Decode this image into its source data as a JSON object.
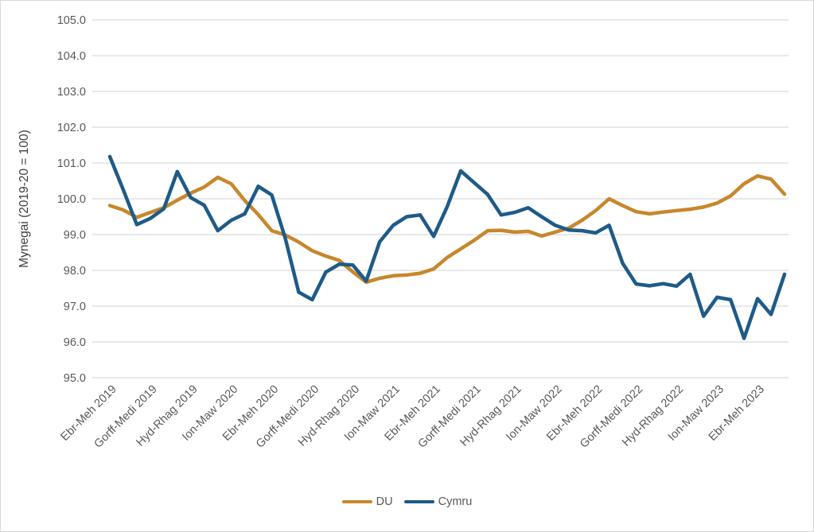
{
  "chart_data": {
    "type": "line",
    "title": "",
    "ylabel": "Mynegai (2019-20 = 100)",
    "xlabel": "",
    "ylim": [
      95.0,
      105.0
    ],
    "ytick_step": 1.0,
    "y_tick_labels": [
      "95.0",
      "96.0",
      "97.0",
      "98.0",
      "99.0",
      "100.0",
      "101.0",
      "102.0",
      "103.0",
      "104.0",
      "105.0"
    ],
    "grid": "horizontal",
    "gridline_color": "#d9d9d9",
    "x_tick_labels": [
      "Ebr-Meh 2019",
      "Gorff-Medi 2019",
      "Hyd-Rhag 2019",
      "Ion-Maw 2020",
      "Ebr-Meh 2020",
      "Gorff-Medi 2020",
      "Hyd-Rhag 2020",
      "Ion-Maw 2021",
      "Ebr-Meh 2021",
      "Gorff-Medi 2021",
      "Hyd-Rhag 2021",
      "Ion-Maw 2022",
      "Ebr-Meh 2022",
      "Gorff-Medi 2022",
      "Hyd-Rhag 2022",
      "Ion-Maw 2023",
      "Ebr-Meh 2023"
    ],
    "x_tick_every_n_points": 3,
    "x_tick_rotation_deg": -45,
    "legend_position": "bottom-center",
    "series": [
      {
        "name": "DU",
        "color": "#c8872c",
        "line_width": 4.5,
        "values": [
          99.81,
          99.69,
          99.48,
          99.62,
          99.75,
          99.96,
          100.16,
          100.33,
          100.6,
          100.42,
          99.95,
          99.56,
          99.11,
          98.99,
          98.79,
          98.55,
          98.4,
          98.28,
          97.96,
          97.67,
          97.78,
          97.85,
          97.87,
          97.92,
          98.04,
          98.36,
          98.6,
          98.84,
          99.11,
          99.12,
          99.07,
          99.09,
          98.96,
          99.07,
          99.18,
          99.4,
          99.67,
          100.0,
          99.81,
          99.64,
          99.58,
          99.63,
          99.67,
          99.71,
          99.77,
          99.88,
          100.08,
          100.42,
          100.64,
          100.55,
          100.13
        ]
      },
      {
        "name": "Cymru",
        "color": "#1e5b87",
        "line_width": 4.5,
        "values": [
          101.18,
          100.25,
          99.28,
          99.45,
          99.72,
          100.76,
          100.03,
          99.82,
          99.11,
          99.4,
          99.58,
          100.35,
          100.11,
          98.9,
          97.39,
          97.18,
          97.95,
          98.17,
          98.15,
          97.7,
          98.8,
          99.26,
          99.5,
          99.55,
          98.95,
          99.78,
          100.78,
          100.45,
          100.12,
          99.55,
          99.62,
          99.75,
          99.5,
          99.26,
          99.13,
          99.11,
          99.05,
          99.26,
          98.2,
          97.62,
          97.57,
          97.63,
          97.56,
          97.89,
          96.72,
          97.25,
          97.18,
          96.1,
          97.21,
          96.77,
          97.89
        ]
      }
    ]
  },
  "geometry_note": "plot gridlines x 115-990, y 24-474; first/last data point x 137/985"
}
